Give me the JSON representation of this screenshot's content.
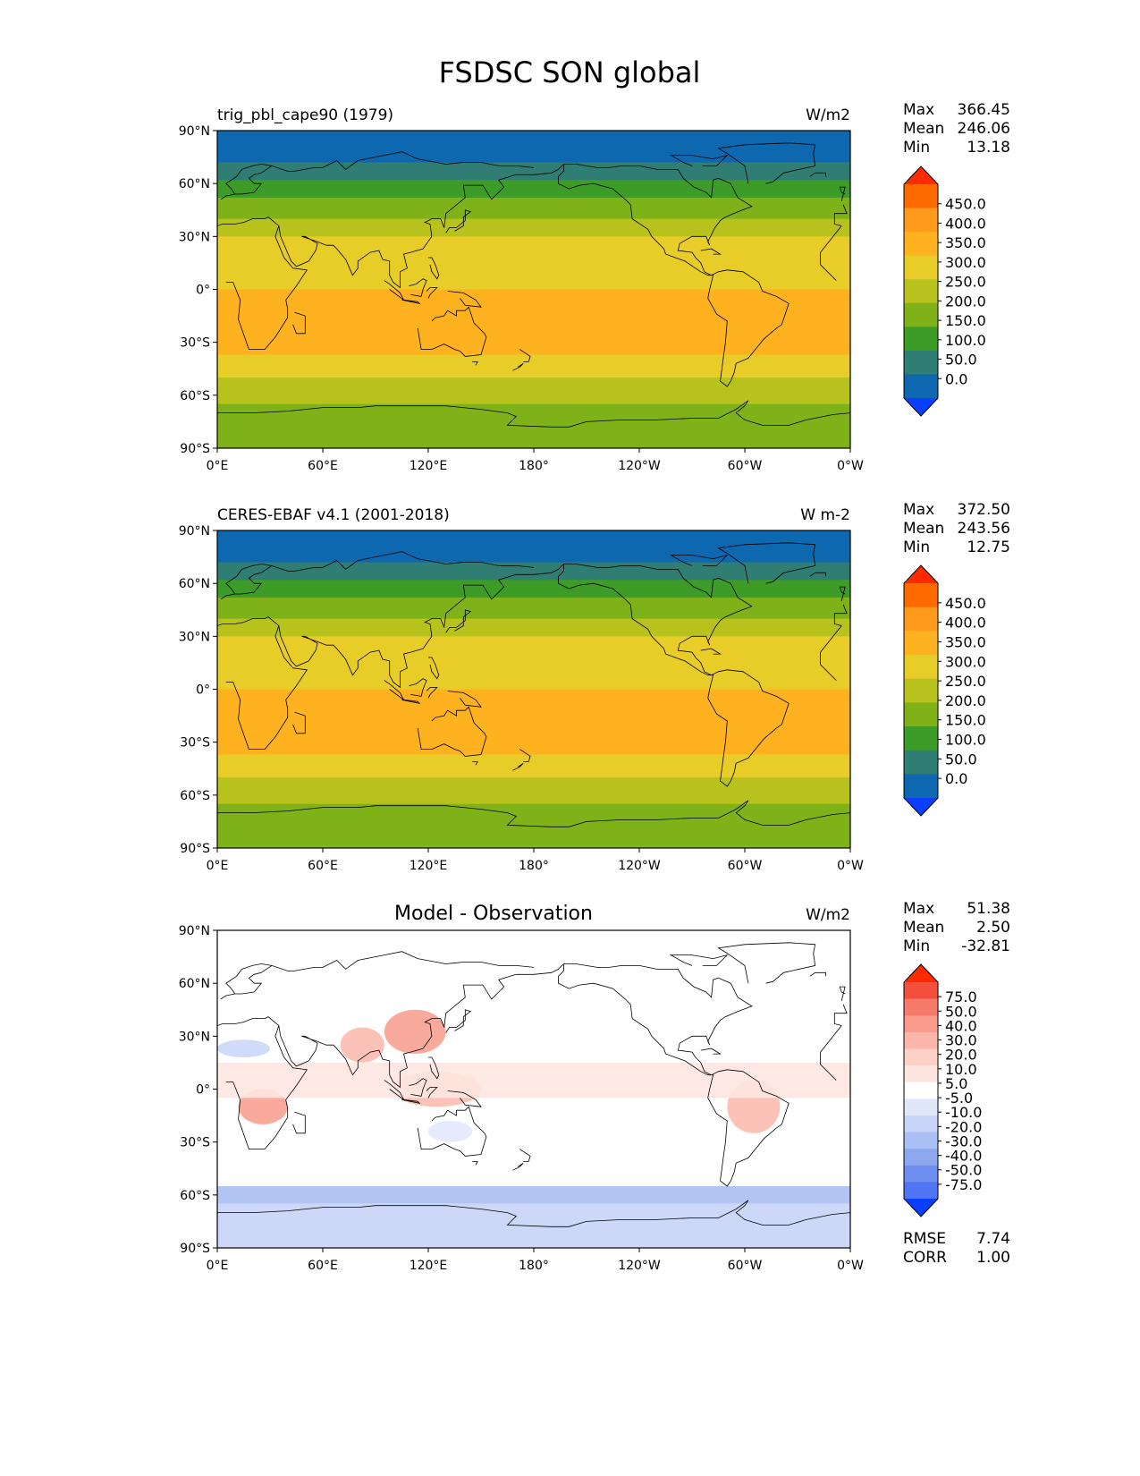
{
  "figure": {
    "title": "FSDSC SON global"
  },
  "chart_data": [
    {
      "type": "heatmap",
      "panel": "model",
      "title_left": "trig_pbl_cape90 (1979)",
      "title_right": "W/m2",
      "stats": {
        "labels": [
          "Max",
          "Mean",
          "Min"
        ],
        "values": [
          "366.45",
          "246.06",
          "13.18"
        ]
      },
      "x_ticks": [
        "0°E",
        "60°E",
        "120°E",
        "180°",
        "120°W",
        "60°W",
        "0°W"
      ],
      "y_ticks": [
        "90°N",
        "60°N",
        "30°N",
        "0°",
        "30°S",
        "60°S",
        "90°S"
      ],
      "xlim": [
        0,
        360
      ],
      "ylim": [
        -90,
        90
      ],
      "colorbar": {
        "levels": [
          "450.0",
          "400.0",
          "350.0",
          "300.0",
          "250.0",
          "200.0",
          "150.0",
          "100.0",
          "50.0",
          "0.0"
        ],
        "colors": [
          "#ff2a00",
          "#ff6a00",
          "#ff9a1a",
          "#ffb21f",
          "#e8cc27",
          "#b7c21c",
          "#7fb219",
          "#3d9c28",
          "#2f7d73",
          "#0d68b0",
          "#0a3fff"
        ]
      },
      "zonal_bands": [
        {
          "lat": [
            72,
            90
          ],
          "value": 25,
          "color": "#0d68b0"
        },
        {
          "lat": [
            62,
            72
          ],
          "value": 75,
          "color": "#2f7d73"
        },
        {
          "lat": [
            52,
            62
          ],
          "value": 125,
          "color": "#3d9c28"
        },
        {
          "lat": [
            40,
            52
          ],
          "value": 175,
          "color": "#7fb219"
        },
        {
          "lat": [
            30,
            40
          ],
          "value": 225,
          "color": "#b7c21c"
        },
        {
          "lat": [
            0,
            30
          ],
          "value": 275,
          "color": "#e8cc27"
        },
        {
          "lat": [
            -25,
            0
          ],
          "value": 325,
          "color": "#ffb21f"
        },
        {
          "lat": [
            -37,
            -25
          ],
          "value": 325,
          "color": "#ffb21f"
        },
        {
          "lat": [
            -50,
            -37
          ],
          "value": 275,
          "color": "#e8cc27"
        },
        {
          "lat": [
            -65,
            -50
          ],
          "value": 225,
          "color": "#b7c21c"
        },
        {
          "lat": [
            -90,
            -65
          ],
          "value": 175,
          "color": "#7fb219"
        }
      ]
    },
    {
      "type": "heatmap",
      "panel": "observation",
      "title_left": "CERES-EBAF v4.1 (2001-2018)",
      "title_right": "W m-2",
      "stats": {
        "labels": [
          "Max",
          "Mean",
          "Min"
        ],
        "values": [
          "372.50",
          "243.56",
          "12.75"
        ]
      },
      "x_ticks": [
        "0°E",
        "60°E",
        "120°E",
        "180°",
        "120°W",
        "60°W",
        "0°W"
      ],
      "y_ticks": [
        "90°N",
        "60°N",
        "30°N",
        "0°",
        "30°S",
        "60°S",
        "90°S"
      ],
      "xlim": [
        0,
        360
      ],
      "ylim": [
        -90,
        90
      ],
      "colorbar": {
        "levels": [
          "450.0",
          "400.0",
          "350.0",
          "300.0",
          "250.0",
          "200.0",
          "150.0",
          "100.0",
          "50.0",
          "0.0"
        ],
        "colors": [
          "#ff2a00",
          "#ff6a00",
          "#ff9a1a",
          "#ffb21f",
          "#e8cc27",
          "#b7c21c",
          "#7fb219",
          "#3d9c28",
          "#2f7d73",
          "#0d68b0",
          "#0a3fff"
        ]
      },
      "zonal_bands": [
        {
          "lat": [
            72,
            90
          ],
          "value": 25,
          "color": "#0d68b0"
        },
        {
          "lat": [
            62,
            72
          ],
          "value": 75,
          "color": "#2f7d73"
        },
        {
          "lat": [
            52,
            62
          ],
          "value": 125,
          "color": "#3d9c28"
        },
        {
          "lat": [
            40,
            52
          ],
          "value": 175,
          "color": "#7fb219"
        },
        {
          "lat": [
            30,
            40
          ],
          "value": 225,
          "color": "#b7c21c"
        },
        {
          "lat": [
            0,
            30
          ],
          "value": 275,
          "color": "#e8cc27"
        },
        {
          "lat": [
            -25,
            0
          ],
          "value": 325,
          "color": "#ffb21f"
        },
        {
          "lat": [
            -37,
            -25
          ],
          "value": 325,
          "color": "#ffb21f"
        },
        {
          "lat": [
            -50,
            -37
          ],
          "value": 275,
          "color": "#e8cc27"
        },
        {
          "lat": [
            -65,
            -50
          ],
          "value": 225,
          "color": "#b7c21c"
        },
        {
          "lat": [
            -90,
            -65
          ],
          "value": 175,
          "color": "#7fb219"
        }
      ]
    },
    {
      "type": "heatmap",
      "panel": "difference",
      "title_center": "Model - Observation",
      "title_right": "W/m2",
      "stats": {
        "labels": [
          "Max",
          "Mean",
          "Min"
        ],
        "values": [
          "51.38",
          "2.50",
          "-32.81"
        ]
      },
      "extra_stats": {
        "labels": [
          "RMSE",
          "CORR"
        ],
        "values": [
          "7.74",
          "1.00"
        ]
      },
      "x_ticks": [
        "0°E",
        "60°E",
        "120°E",
        "180°",
        "120°W",
        "60°W",
        "0°W"
      ],
      "y_ticks": [
        "90°N",
        "60°N",
        "30°N",
        "0°",
        "30°S",
        "60°S",
        "90°S"
      ],
      "xlim": [
        0,
        360
      ],
      "ylim": [
        -90,
        90
      ],
      "colorbar": {
        "levels": [
          "75.0",
          "50.0",
          "40.0",
          "30.0",
          "20.0",
          "10.0",
          "5.0",
          "-5.0",
          "-10.0",
          "-20.0",
          "-30.0",
          "-40.0",
          "-50.0",
          "-75.0"
        ],
        "colors": [
          "#ff2a00",
          "#f5503c",
          "#f77b6b",
          "#f99a8c",
          "#fbb6aa",
          "#fdd0c6",
          "#fee6e0",
          "#ffffff",
          "#e0e7fb",
          "#c8d4f8",
          "#aabff4",
          "#8ea8f0",
          "#6f8ff0",
          "#4f74f4",
          "#0a3fff"
        ]
      },
      "anomalies": [
        {
          "region": "East Asia",
          "lon": [
            95,
            130
          ],
          "lat": [
            20,
            45
          ],
          "value": 30,
          "color": "#f99a8c"
        },
        {
          "region": "India",
          "lon": [
            70,
            95
          ],
          "lat": [
            15,
            35
          ],
          "value": 20,
          "color": "#fbb6aa"
        },
        {
          "region": "Southern Africa",
          "lon": [
            12,
            40
          ],
          "lat": [
            -20,
            0
          ],
          "value": 30,
          "color": "#f99a8c"
        },
        {
          "region": "South America",
          "lon": [
            290,
            320
          ],
          "lat": [
            -25,
            5
          ],
          "value": 20,
          "color": "#fbb6aa"
        },
        {
          "region": "Maritime Continent",
          "lon": [
            100,
            150
          ],
          "lat": [
            -10,
            10
          ],
          "value": 20,
          "color": "#fbb6aa"
        },
        {
          "region": "Tropical band",
          "lon": [
            0,
            360
          ],
          "lat": [
            -5,
            15
          ],
          "value": 7.5,
          "color": "#fee6e0"
        },
        {
          "region": "Southern Ocean",
          "lon": [
            0,
            360
          ],
          "lat": [
            -65,
            -55
          ],
          "value": -20,
          "color": "#aabff4"
        },
        {
          "region": "Antarctica",
          "lon": [
            0,
            360
          ],
          "lat": [
            -90,
            -65
          ],
          "value": -10,
          "color": "#c8d4f8"
        },
        {
          "region": "Sahara",
          "lon": [
            0,
            30
          ],
          "lat": [
            18,
            28
          ],
          "value": -10,
          "color": "#c8d4f8"
        },
        {
          "region": "Australia",
          "lon": [
            120,
            145
          ],
          "lat": [
            -30,
            -18
          ],
          "value": -10,
          "color": "#e0e7fb"
        }
      ]
    }
  ]
}
